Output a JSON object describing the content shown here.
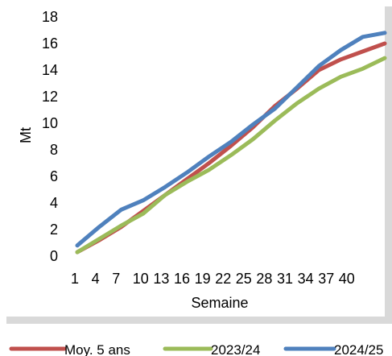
{
  "chart_data": {
    "type": "line",
    "xlabel": "Semaine",
    "ylabel": "Mt",
    "ylim": [
      0,
      18
    ],
    "yticks": [
      0,
      2,
      4,
      6,
      8,
      10,
      12,
      14,
      16,
      18
    ],
    "xlim": [
      1,
      43
    ],
    "xticks": [
      1,
      4,
      7,
      10,
      13,
      16,
      19,
      22,
      25,
      28,
      31,
      34,
      37,
      40
    ],
    "legend_position": "bottom",
    "grid": false,
    "series": [
      {
        "name": "Moy. 5 ans",
        "color": "#c0504d",
        "x": [
          1,
          4,
          7,
          10,
          13,
          16,
          19,
          22,
          25,
          28,
          31,
          34,
          37,
          40,
          43
        ],
        "values": [
          0.3,
          1.2,
          2.2,
          3.4,
          4.6,
          5.8,
          7.0,
          8.3,
          9.7,
          11.3,
          12.6,
          14.0,
          14.8,
          15.4,
          16.0
        ]
      },
      {
        "name": "2023/24",
        "color": "#9bbb59",
        "x": [
          1,
          4,
          7,
          10,
          13,
          16,
          19,
          22,
          25,
          28,
          31,
          34,
          37,
          40,
          43
        ],
        "values": [
          0.3,
          1.3,
          2.3,
          3.2,
          4.6,
          5.6,
          6.5,
          7.6,
          8.8,
          10.2,
          11.5,
          12.6,
          13.5,
          14.1,
          14.9
        ]
      },
      {
        "name": "2024/25",
        "color": "#4f81bd",
        "x": [
          1,
          4,
          7,
          10,
          13,
          16,
          19,
          22,
          25,
          28,
          31,
          34,
          37,
          40,
          43
        ],
        "values": [
          0.8,
          2.2,
          3.5,
          4.2,
          5.2,
          6.3,
          7.5,
          8.6,
          9.9,
          11.1,
          12.7,
          14.3,
          15.5,
          16.5,
          16.8
        ]
      }
    ]
  }
}
